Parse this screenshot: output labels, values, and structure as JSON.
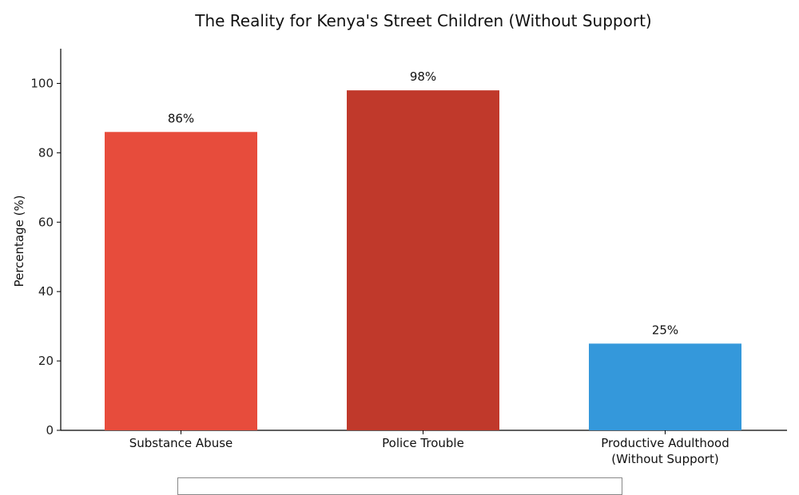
{
  "chart_data": {
    "type": "bar",
    "title": "The Reality for Kenya's Street Children (Without Support)",
    "xlabel": "",
    "ylabel": "Percentage (%)",
    "ylim": [
      0,
      110
    ],
    "yticks": [
      0,
      20,
      40,
      60,
      80,
      100
    ],
    "categories": [
      [
        "Substance Abuse"
      ],
      [
        "Police Trouble"
      ],
      [
        "Productive Adulthood",
        "(Without Support)"
      ]
    ],
    "values": [
      86,
      98,
      25
    ],
    "data_labels": [
      "86%",
      "98%",
      "25%"
    ],
    "colors": [
      "#e74c3c",
      "#c0392b",
      "#3498db"
    ],
    "grid": false
  }
}
